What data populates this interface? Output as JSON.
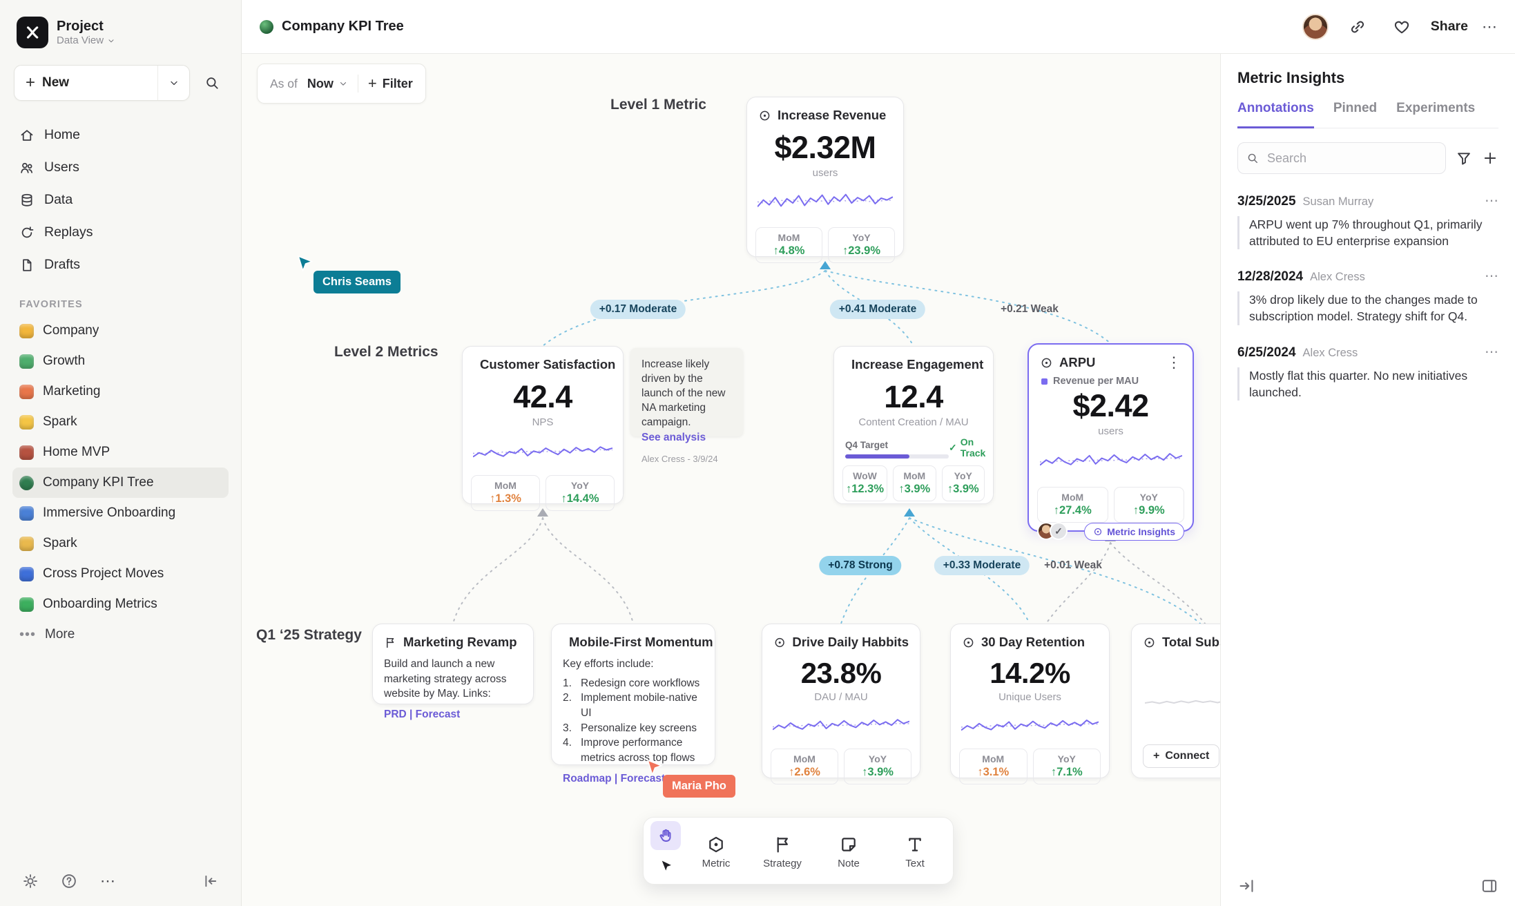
{
  "app": {
    "window_title": "Company KPI Tree",
    "share_label": "Share"
  },
  "icons": {
    "plus": "+",
    "check": "✓",
    "kebab_h": "⋯",
    "kebab_v": "⋮",
    "chevron_down": "▾",
    "dots": "•••"
  },
  "sidebar": {
    "project_name": "Project",
    "project_view": "Data View",
    "new_label": "New",
    "nav": [
      {
        "label": "Home"
      },
      {
        "label": "Users"
      },
      {
        "label": "Data"
      },
      {
        "label": "Replays"
      },
      {
        "label": "Drafts"
      }
    ],
    "favorites_heading": "FAVORITES",
    "favorites": [
      {
        "label": "Company",
        "color": "#f2b63c"
      },
      {
        "label": "Growth",
        "color": "#4fae6d"
      },
      {
        "label": "Marketing",
        "color": "#e8764a"
      },
      {
        "label": "Spark",
        "color": "#f4c545"
      },
      {
        "label": "Home MVP",
        "color": "#b65240"
      },
      {
        "label": "Company KPI Tree",
        "color": "#2f7d4f"
      },
      {
        "label": "Immersive Onboarding",
        "color": "#4a80d6"
      },
      {
        "label": "Spark",
        "color": "#e9b94d"
      },
      {
        "label": "Cross Project Moves",
        "color": "#3e6fd9"
      },
      {
        "label": "Onboarding Metrics",
        "color": "#3caf5e"
      }
    ],
    "more_label": "More"
  },
  "canvas": {
    "as_of_label": "As of",
    "as_of_value": "Now",
    "filter_label": "Filter",
    "level_labels": [
      "Level 1 Metric",
      "Level 2 Metrics",
      "Q1 ‘25 Strategy"
    ],
    "cursors": [
      {
        "name": "Chris Seams",
        "color": "#0c7d95"
      },
      {
        "name": "Maria Pho",
        "color": "#f0735a"
      }
    ],
    "edges": [
      {
        "text": "+0.17 Moderate"
      },
      {
        "text": "+0.41 Moderate"
      },
      {
        "text": "+0.21 Weak"
      },
      {
        "text": "+0.78 Strong"
      },
      {
        "text": "+0.33 Moderate"
      },
      {
        "text": "+0.01 Weak"
      }
    ]
  },
  "nodes": {
    "revenue": {
      "title": "Increase Revenue",
      "value": "$2.32M",
      "unit": "users",
      "stats": [
        {
          "label": "MoM",
          "value": "↑4.8%",
          "color": "#2e9e5b"
        },
        {
          "label": "YoY",
          "value": "↑23.9%",
          "color": "#2e9e5b"
        }
      ]
    },
    "customer": {
      "title": "Customer Satisfaction",
      "value": "42.4",
      "unit": "NPS",
      "stats": [
        {
          "label": "MoM",
          "value": "↑1.3%",
          "color": "#e0823e"
        },
        {
          "label": "YoY",
          "value": "↑14.4%",
          "color": "#2e9e5b"
        }
      ]
    },
    "note": {
      "text": "Increase likely driven by the launch of the new NA marketing campaign.",
      "link": "See analysis",
      "author": "Alex Cress - 3/9/24"
    },
    "engagement": {
      "title": "Increase Engagement",
      "value": "12.4",
      "unit": "Content Creation / MAU",
      "target_label": "Q4 Target",
      "target_pct": 62,
      "status": "On Track",
      "stats": [
        {
          "label": "WoW",
          "value": "↑12.3%",
          "color": "#2e9e5b"
        },
        {
          "label": "MoM",
          "value": "↑3.9%",
          "color": "#2e9e5b"
        },
        {
          "label": "YoY",
          "value": "↑3.9%",
          "color": "#2e9e5b"
        }
      ]
    },
    "arpu": {
      "title": "ARPU",
      "series_label": "Revenue per MAU",
      "value": "$2.42",
      "unit": "users",
      "badge": "Metric Insights",
      "stats": [
        {
          "label": "MoM",
          "value": "↑27.4%",
          "color": "#2e9e5b"
        },
        {
          "label": "YoY",
          "value": "↑9.9%",
          "color": "#2e9e5b"
        }
      ]
    },
    "revamp": {
      "title": "Marketing Revamp",
      "body": "Build and launch a new marketing strategy across website by May. Links:",
      "links": "PRD | Forecast"
    },
    "mobile": {
      "title": "Mobile-First Momentum",
      "intro": "Key efforts include:",
      "items": [
        {
          "n": "1.",
          "text": "Redesign core workflows"
        },
        {
          "n": "2.",
          "text": "Implement mobile-native UI"
        },
        {
          "n": "3.",
          "text": "Personalize key screens"
        },
        {
          "n": "4.",
          "text": "Improve performance metrics across top flows"
        }
      ],
      "links": "Roadmap | Forecast"
    },
    "drive": {
      "title": "Drive Daily Habbits",
      "value": "23.8%",
      "unit": "DAU / MAU",
      "stats": [
        {
          "label": "MoM",
          "value": "↑2.6%",
          "color": "#e0823e"
        },
        {
          "label": "YoY",
          "value": "↑3.9%",
          "color": "#2e9e5b"
        }
      ]
    },
    "retention": {
      "title": "30 Day Retention",
      "value": "14.2%",
      "unit": "Unique Users",
      "stats": [
        {
          "label": "MoM",
          "value": "↑3.1%",
          "color": "#e0823e"
        },
        {
          "label": "YoY",
          "value": "↑7.1%",
          "color": "#2e9e5b"
        }
      ]
    },
    "totalsubs": {
      "title": "Total Subscriptions",
      "connect_label": "Connect"
    }
  },
  "toolbar": {
    "tools": [
      {
        "label": "Metric"
      },
      {
        "label": "Strategy"
      },
      {
        "label": "Note"
      },
      {
        "label": "Text"
      }
    ]
  },
  "insights": {
    "title": "Metric Insights",
    "tabs": [
      {
        "label": "Annotations"
      },
      {
        "label": "Pinned"
      },
      {
        "label": "Experiments"
      }
    ],
    "search_placeholder": "Search",
    "annotations": [
      {
        "date": "3/25/2025",
        "author": "Susan Murray",
        "text": "ARPU went up 7% throughout Q1, primarily attributed to EU enterprise expansion"
      },
      {
        "date": "12/28/2024",
        "author": "Alex Cress",
        "text": "3% drop likely due to the changes made to subscription model. Strategy shift for Q4."
      },
      {
        "date": "6/25/2024",
        "author": "Alex Cress",
        "text": "Mostly flat this quarter. No new initiatives launched."
      }
    ]
  },
  "chart_data": {
    "type": "line",
    "description": "Sparkline shapes per metric card, values normalized 0-100 (solid purple = metric, dotted = prior period)",
    "series": {
      "revenue": {
        "main": [
          38,
          60,
          44,
          68,
          40,
          64,
          50,
          74,
          42,
          66,
          54,
          76,
          46,
          70,
          56,
          78,
          50,
          68,
          58,
          74,
          48,
          66,
          60,
          70
        ],
        "ref": [
          54,
          50,
          57,
          52,
          59,
          54,
          61,
          55,
          59,
          54,
          62,
          56,
          60,
          55,
          63,
          57,
          61,
          56,
          59,
          55,
          61,
          57,
          60,
          58
        ]
      },
      "customer": {
        "main": [
          32,
          46,
          38,
          54,
          42,
          34,
          50,
          44,
          60,
          36,
          52,
          46,
          62,
          50,
          40,
          58,
          46,
          64,
          52,
          60,
          48,
          66,
          56,
          62
        ],
        "ref": [
          44,
          46,
          43,
          48,
          45,
          49,
          46,
          50,
          47,
          51,
          48,
          52,
          49,
          53,
          50,
          54,
          51,
          55,
          52,
          56,
          53,
          57,
          54,
          56
        ]
      },
      "arpu": {
        "main": [
          40,
          56,
          46,
          64,
          50,
          42,
          60,
          52,
          70,
          44,
          62,
          54,
          72,
          56,
          48,
          66,
          56,
          74,
          58,
          68,
          56,
          76,
          62,
          70
        ],
        "ref": [
          50,
          52,
          49,
          54,
          51,
          55,
          52,
          56,
          53,
          57,
          54,
          58,
          55,
          59,
          56,
          60,
          57,
          61,
          58,
          62,
          59,
          63,
          60,
          62
        ]
      },
      "drive": {
        "main": [
          36,
          52,
          42,
          60,
          46,
          38,
          56,
          48,
          66,
          40,
          58,
          50,
          68,
          52,
          44,
          62,
          52,
          70,
          54,
          64,
          52,
          72,
          58,
          66
        ],
        "ref": [
          46,
          48,
          45,
          50,
          47,
          51,
          48,
          52,
          49,
          53,
          50,
          54,
          51,
          55,
          52,
          56,
          53,
          57,
          54,
          58,
          55,
          59,
          56,
          58
        ]
      },
      "retention": {
        "main": [
          34,
          50,
          40,
          58,
          44,
          36,
          54,
          46,
          64,
          38,
          56,
          48,
          66,
          50,
          42,
          60,
          50,
          68,
          52,
          62,
          50,
          70,
          56,
          64
        ],
        "ref": [
          45,
          47,
          44,
          49,
          46,
          50,
          47,
          51,
          48,
          52,
          49,
          53,
          50,
          54,
          51,
          55,
          52,
          56,
          53,
          57,
          54,
          58,
          55,
          57
        ]
      },
      "totalsubs": {
        "main": [
          50,
          53,
          49,
          54,
          50,
          55,
          51,
          56,
          52,
          55,
          51,
          56,
          52,
          57,
          53,
          56,
          52,
          57,
          53,
          58
        ]
      }
    }
  }
}
